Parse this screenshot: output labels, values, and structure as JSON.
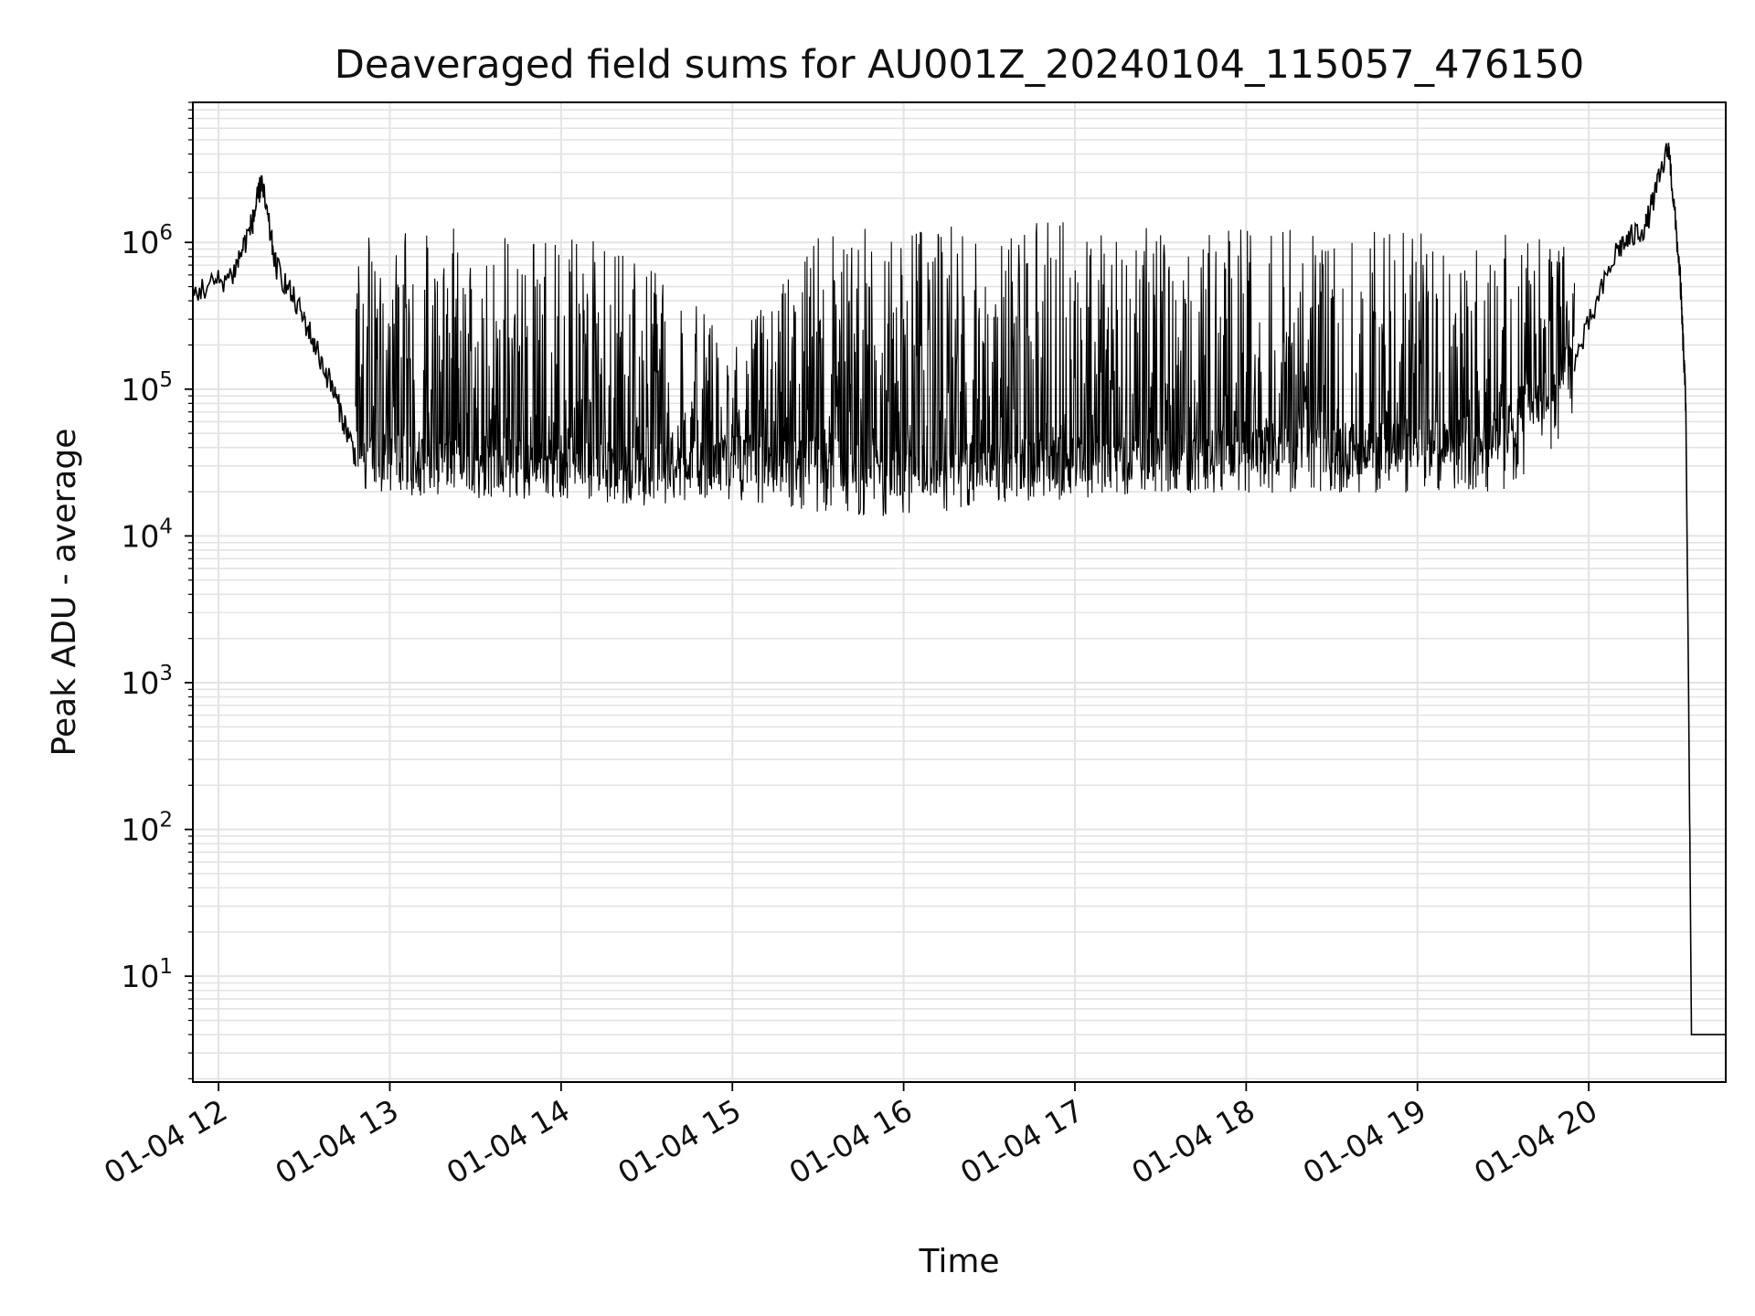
{
  "chart_data": {
    "type": "line",
    "title": "Deaveraged field sums for AU001Z_20240104_115057_476150",
    "xlabel": "Time",
    "ylabel": "Peak ADU - average",
    "yscale": "log",
    "ylim": [
      1.9,
      9000000
    ],
    "xlim": [
      "2024-01-04 11:51",
      "2024-01-04 20:48"
    ],
    "grid": "on (major and minor)",
    "line_color": "#000000",
    "x_ticks": [
      "01-04 12",
      "01-04 13",
      "01-04 14",
      "01-04 15",
      "01-04 16",
      "01-04 17",
      "01-04 18",
      "01-04 19",
      "01-04 20"
    ],
    "y_ticks": [
      {
        "base": "10",
        "exp": "1",
        "value": 10
      },
      {
        "base": "10",
        "exp": "2",
        "value": 100
      },
      {
        "base": "10",
        "exp": "3",
        "value": 1000
      },
      {
        "base": "10",
        "exp": "4",
        "value": 10000
      },
      {
        "base": "10",
        "exp": "5",
        "value": 100000
      },
      {
        "base": "10",
        "exp": "6",
        "value": 1000000
      }
    ],
    "series": [
      {
        "points": [
          {
            "x": "2024-01-04 11:51",
            "y": 450000
          },
          {
            "x": "2024-01-04 12:05",
            "y": 600000
          },
          {
            "x": "2024-01-04 12:12",
            "y": 1400000
          },
          {
            "x": "2024-01-04 12:15",
            "y": 2600000
          },
          {
            "x": "2024-01-04 12:20",
            "y": 700000
          },
          {
            "x": "2024-01-04 12:30",
            "y": 300000
          },
          {
            "x": "2024-01-04 12:40",
            "y": 100000
          },
          {
            "x": "2024-01-04 12:48",
            "y": 35000
          },
          {
            "x": "2024-01-04 13:00",
            "y": 30000
          },
          {
            "x": "2024-01-04 13:30",
            "y": 28000
          },
          {
            "x": "2024-01-04 14:00",
            "y": 30000
          },
          {
            "x": "2024-01-04 14:30",
            "y": 25000
          },
          {
            "x": "2024-01-04 15:00",
            "y": 30000
          },
          {
            "x": "2024-01-04 15:30",
            "y": 28000
          },
          {
            "x": "2024-01-04 16:00",
            "y": 25000
          },
          {
            "x": "2024-01-04 16:30",
            "y": 28000
          },
          {
            "x": "2024-01-04 17:00",
            "y": 30000
          },
          {
            "x": "2024-01-04 17:30",
            "y": 32000
          },
          {
            "x": "2024-01-04 18:00",
            "y": 35000
          },
          {
            "x": "2024-01-04 18:30",
            "y": 35000
          },
          {
            "x": "2024-01-04 19:00",
            "y": 38000
          },
          {
            "x": "2024-01-04 19:30",
            "y": 45000
          },
          {
            "x": "2024-01-04 19:55",
            "y": 150000
          },
          {
            "x": "2024-01-04 20:10",
            "y": 900000
          },
          {
            "x": "2024-01-04 20:20",
            "y": 1300000
          },
          {
            "x": "2024-01-04 20:28",
            "y": 4500000
          },
          {
            "x": "2024-01-04 20:32",
            "y": 600000
          },
          {
            "x": "2024-01-04 20:34",
            "y": 80000
          },
          {
            "x": "2024-01-04 20:35",
            "y": 800
          },
          {
            "x": "2024-01-04 20:36",
            "y": 4
          },
          {
            "x": "2024-01-04 20:48",
            "y": 4
          }
        ],
        "envelope": [
          {
            "x": "2024-01-04 12:48",
            "low": 22000,
            "high": 1300000
          },
          {
            "x": "2024-01-04 13:30",
            "low": 20000,
            "high": 1300000
          },
          {
            "x": "2024-01-04 14:00",
            "low": 20000,
            "high": 1200000
          },
          {
            "x": "2024-01-04 14:30",
            "low": 18000,
            "high": 900000
          },
          {
            "x": "2024-01-04 15:00",
            "low": 20000,
            "high": 200000
          },
          {
            "x": "2024-01-04 15:30",
            "low": 16000,
            "high": 1200000
          },
          {
            "x": "2024-01-04 16:00",
            "low": 15000,
            "high": 1300000
          },
          {
            "x": "2024-01-04 16:30",
            "low": 18000,
            "high": 1300000
          },
          {
            "x": "2024-01-04 17:00",
            "low": 20000,
            "high": 1400000
          },
          {
            "x": "2024-01-04 17:30",
            "low": 22000,
            "high": 1300000
          },
          {
            "x": "2024-01-04 18:00",
            "low": 22000,
            "high": 1300000
          },
          {
            "x": "2024-01-04 18:30",
            "low": 22000,
            "high": 1200000
          },
          {
            "x": "2024-01-04 19:00",
            "low": 22000,
            "high": 1200000
          },
          {
            "x": "2024-01-04 19:30",
            "low": 22000,
            "high": 1200000
          },
          {
            "x": "2024-01-04 19:55",
            "low": 60000,
            "high": 1000000
          }
        ]
      }
    ]
  }
}
